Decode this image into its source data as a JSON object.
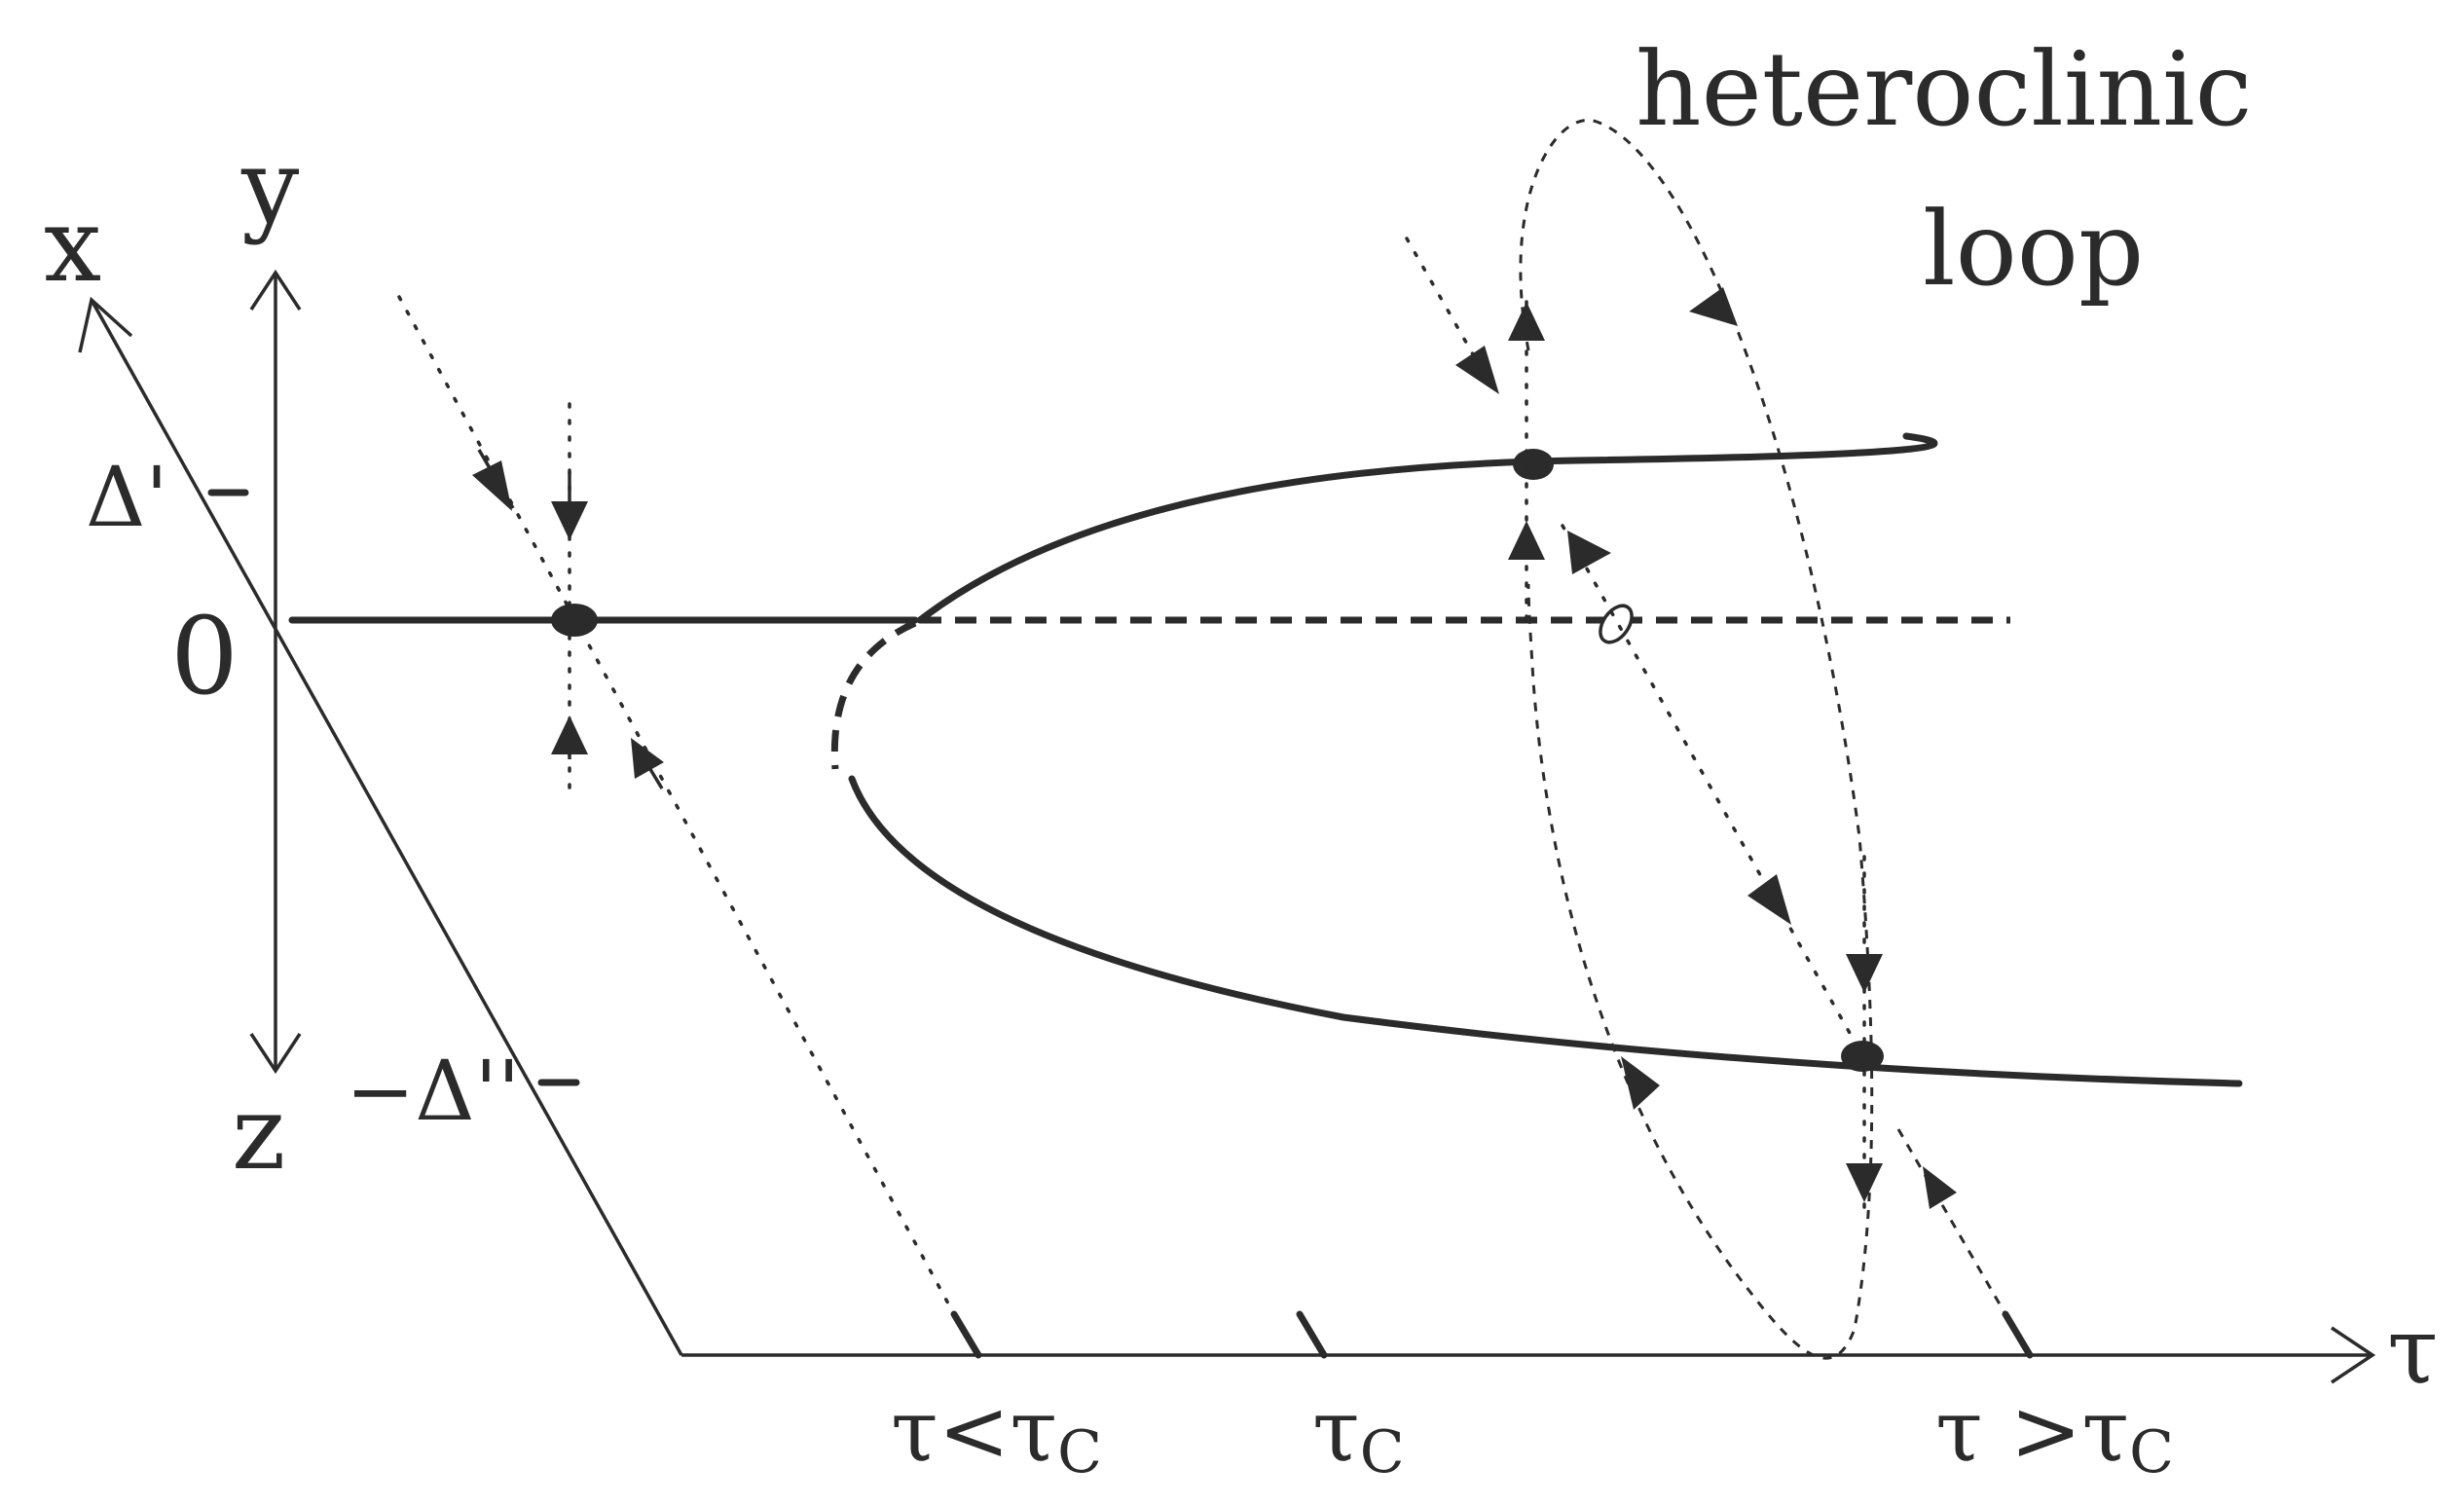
{
  "diagram": {
    "axis_labels": {
      "x": "x",
      "y": "y",
      "z": "z",
      "tau": "τ"
    },
    "y_ticks": {
      "zero": "0",
      "delta_prime": "Δ'",
      "minus_delta_double_prime": "−Δ''"
    },
    "tau_ticks": {
      "less": {
        "main": "τ<τ",
        "sub": "C"
      },
      "critical": {
        "main": "τ",
        "sub": "C"
      },
      "greater": {
        "main": "τ >τ",
        "sub": "C"
      }
    },
    "loop_label": {
      "line1": "heteroclinic",
      "line2": "loop"
    }
  }
}
